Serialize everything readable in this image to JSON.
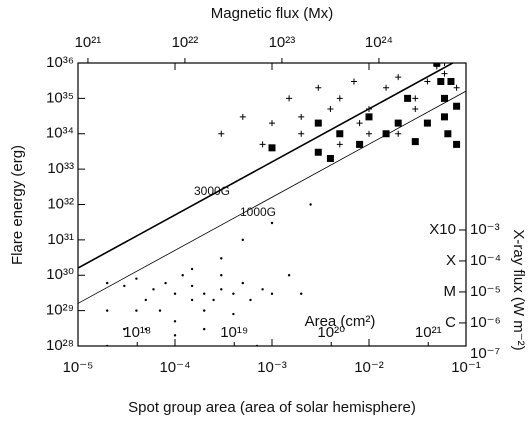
{
  "chart_data": {
    "type": "scatter",
    "xlabel": "Spot group area (area of solar hemisphere)",
    "ylabel": "Flare energy (erg)",
    "x2label": "Magnetic flux (Mx)",
    "y2label": "X-ray flux (W m⁻²)",
    "x3label": "Area (cm²)",
    "xscale": "log",
    "yscale": "log",
    "xlim": [
      1e-05,
      0.1
    ],
    "xticks": [
      {
        "value": 1e-05,
        "label": "10⁻⁵"
      },
      {
        "value": 0.0001,
        "label": "10⁻⁴"
      },
      {
        "value": 0.001,
        "label": "10⁻³"
      },
      {
        "value": 0.01,
        "label": "10⁻²"
      },
      {
        "value": 0.1,
        "label": "10⁻¹"
      }
    ],
    "ylim": [
      1e+28,
      1e+36
    ],
    "yticks": [
      {
        "value": 1e+28,
        "label": "10²⁸"
      },
      {
        "value": 1e+29,
        "label": "10²⁹"
      },
      {
        "value": 1e+30,
        "label": "10³⁰"
      },
      {
        "value": 1e+31,
        "label": "10³¹"
      },
      {
        "value": 1e+32,
        "label": "10³²"
      },
      {
        "value": 1e+33,
        "label": "10³³"
      },
      {
        "value": 1e+34,
        "label": "10³⁴"
      },
      {
        "value": 1e+35,
        "label": "10³⁵"
      },
      {
        "value": 1e+36,
        "label": "10³⁶"
      }
    ],
    "x2lim": [
      7.9e+20,
      7.9e+24
    ],
    "x2ticks": [
      {
        "value": 1e+21,
        "label": "10²¹"
      },
      {
        "value": 1e+22,
        "label": "10²²"
      },
      {
        "value": 1e+23,
        "label": "10²³"
      },
      {
        "value": 1e+24,
        "label": "10²⁴"
      }
    ],
    "x3lim": [
      2.45e+17,
      2.45e+21
    ],
    "x3ticks": [
      {
        "value": 1e+18,
        "label": "10¹⁸"
      },
      {
        "value": 1e+19,
        "label": "10¹⁹"
      },
      {
        "value": 1e+20,
        "label": "10²⁰"
      },
      {
        "value": 1e+21,
        "label": "10²¹"
      }
    ],
    "y2lim": [
      1.8e-07,
      245
    ],
    "y2ticks": [
      {
        "value": 1e-07,
        "label": "10⁻⁷"
      },
      {
        "value": 1e-06,
        "label": "10⁻⁶"
      },
      {
        "value": 1e-05,
        "label": "10⁻⁵"
      },
      {
        "value": 0.0001,
        "label": "10⁻⁴"
      },
      {
        "value": 0.001,
        "label": "10⁻³"
      }
    ],
    "flare_classes": [
      {
        "value": 1e-06,
        "label": "C"
      },
      {
        "value": 1e-05,
        "label": "M"
      },
      {
        "value": 0.0001,
        "label": "X"
      },
      {
        "value": 0.001,
        "label": "X10"
      }
    ],
    "reference_lines": [
      {
        "label": "3000G",
        "x": [
          1e-05,
          0.1
        ],
        "values": [
          1.6e+30,
          1.6e+36
        ],
        "width": 1.6
      },
      {
        "label": "1000G",
        "x": [
          1e-05,
          0.1
        ],
        "values": [
          1.6e+29,
          1.6e+35
        ],
        "width": 0.8
      }
    ],
    "series": [
      {
        "marker": "dot",
        "color": "#000000",
        "x": [
          2e-05,
          2e-05,
          2e-05,
          3e-05,
          3e-05,
          4e-05,
          4e-05,
          5e-05,
          5e-05,
          6e-05,
          7e-05,
          8e-05,
          0.0001,
          0.0001,
          0.00012,
          0.00015,
          0.00015,
          0.0002,
          0.0002,
          0.00025,
          0.0003,
          0.0003,
          0.0004,
          0.0005,
          0.0006,
          0.0008,
          0.001,
          0.0015,
          0.002,
          0.0003,
          0.0001,
          0.0002,
          0.0005,
          0.001,
          0.0007,
          0.0025,
          0.0004,
          0.00015
        ],
        "values": [
          1e+28,
          1e+29,
          6e+29,
          3e+28,
          5e+29,
          1e+29,
          8e+29,
          3e+28,
          2e+29,
          4e+29,
          1e+29,
          6e+29,
          5e+28,
          3e+29,
          1e+30,
          2e+29,
          5e+29,
          1e+29,
          3e+29,
          2e+29,
          4e+29,
          1e+30,
          3e+29,
          6e+29,
          2e+29,
          4e+29,
          3e+29,
          1e+30,
          3e+29,
          3e+30,
          2e+28,
          3e+28,
          1e+31,
          3e+31,
          1e+28,
          1e+32,
          8e+28,
          1.5e+30
        ]
      },
      {
        "marker": "plus",
        "color": "#000000",
        "x": [
          0.0003,
          0.0005,
          0.0008,
          0.001,
          0.0015,
          0.002,
          0.003,
          0.004,
          0.005,
          0.007,
          0.01,
          0.015,
          0.02,
          0.03,
          0.04,
          0.05,
          0.06,
          0.08,
          0.01,
          0.005,
          0.02,
          0.03,
          0.06,
          0.002,
          0.008
        ],
        "values": [
          1e+34,
          3e+34,
          5e+33,
          2e+34,
          1e+35,
          3e+34,
          2e+35,
          5e+34,
          1e+35,
          3e+35,
          5e+34,
          2e+35,
          4e+35,
          1e+35,
          3e+35,
          8e+35,
          5e+35,
          2e+35,
          1e+34,
          5e+33,
          1e+34,
          5e+34,
          1e+36,
          1e+34,
          2e+34
        ]
      },
      {
        "marker": "square",
        "color": "#000000",
        "x": [
          0.003,
          0.003,
          0.005,
          0.008,
          0.01,
          0.015,
          0.02,
          0.03,
          0.05,
          0.055,
          0.06,
          0.06,
          0.065,
          0.08,
          0.08,
          0.001,
          0.004,
          0.025,
          0.04,
          0.07
        ],
        "values": [
          3e+33,
          2e+34,
          1e+34,
          5e+33,
          3e+34,
          1e+34,
          2e+34,
          6e+33,
          1e+36,
          3e+35,
          1e+35,
          3e+34,
          1e+34,
          6e+34,
          5e+33,
          4e+33,
          2e+33,
          1e+35,
          2e+34,
          3e+35
        ]
      }
    ]
  }
}
